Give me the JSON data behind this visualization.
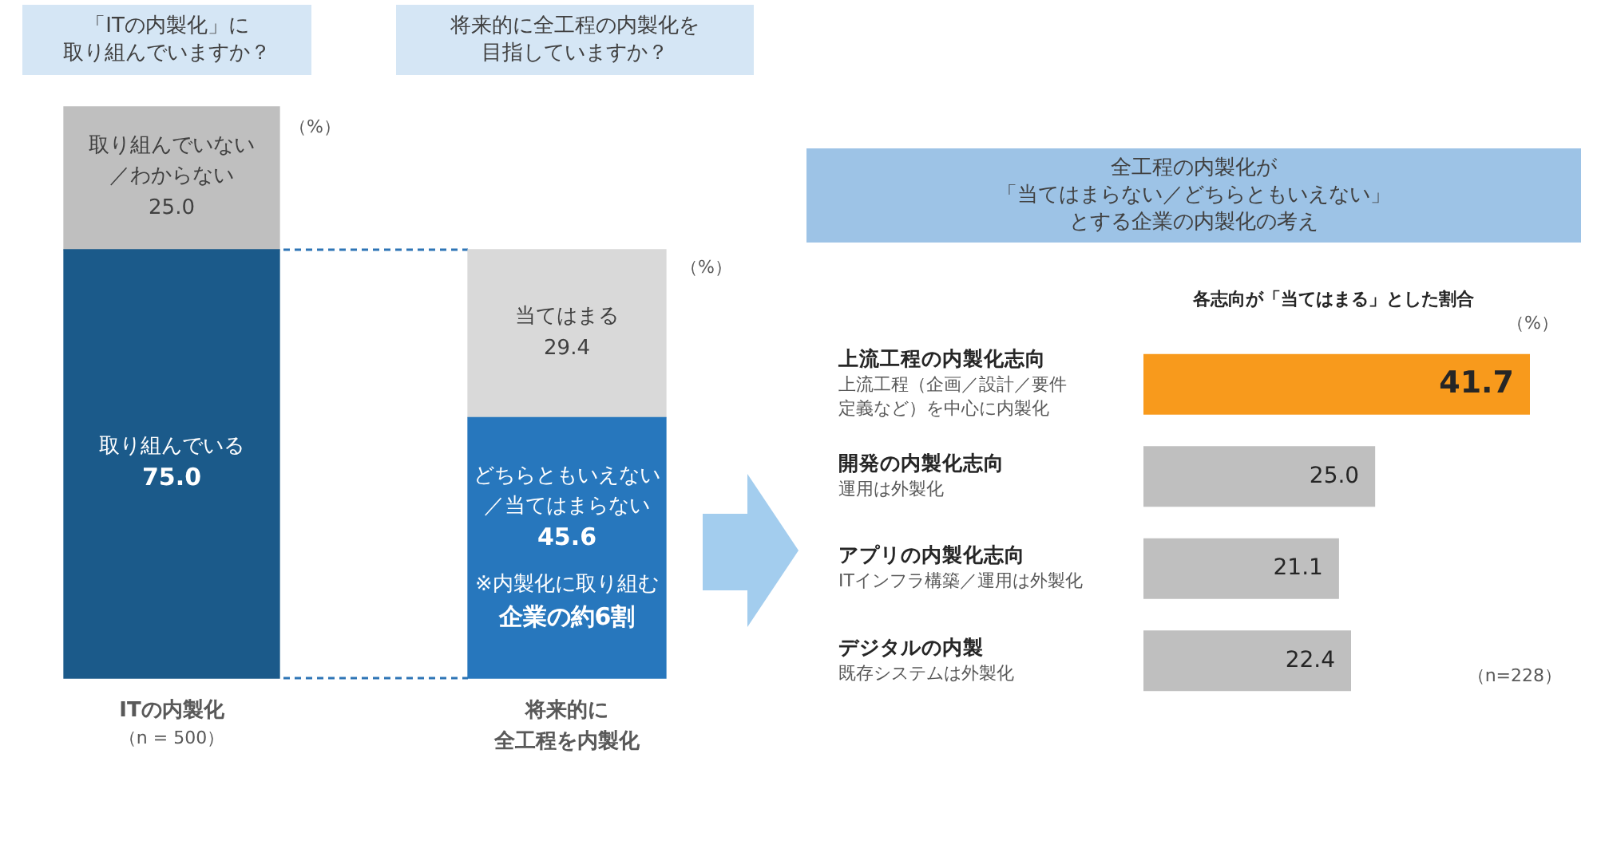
{
  "chart_data": [
    {
      "type": "bar",
      "stacked": true,
      "categories": [
        "ITの内製化",
        "将来的に全工程を内製化"
      ],
      "series": [
        {
          "name": "取り組んでいる",
          "color": "#1b5a8a",
          "values": [
            75.0,
            null
          ],
          "value_labels": [
            "75.0",
            null
          ]
        },
        {
          "name": "取り組んでいない／わからない",
          "color": "#bfbfbf",
          "values": [
            25.0,
            null
          ],
          "value_labels": [
            "25.0",
            null
          ]
        },
        {
          "name": "どちらともいえない／当てはまらない",
          "color": "#2777bd",
          "values": [
            null,
            45.6
          ],
          "value_labels": [
            null,
            "45.6"
          ]
        },
        {
          "name": "当てはまる",
          "color": "#d9d9d9",
          "values": [
            null,
            29.4
          ],
          "value_labels": [
            null,
            "29.4"
          ]
        }
      ],
      "ref_lines": [
        {
          "axis": "y",
          "value": 75.0,
          "color": "#2e75b6",
          "line_style": "dashed"
        },
        {
          "axis": "y",
          "value": 0,
          "color": "#2e75b6",
          "line_style": "dashed"
        }
      ],
      "tick_labels": "x",
      "annotations": [
        "「ITの内製化」に取り組んでいますか？",
        "将来的に全工程の内製化を目指していますか？",
        "（%）",
        "（n = 500）",
        "（%）",
        "※内製化に取り組む企業の約6割"
      ]
    },
    {
      "type": "bar",
      "orientation": "horizontal",
      "title": "全工程の内製化が「当てはまらない／どちらともいえない」とする企業の内製化の考え",
      "subtitle": "各志向が「当てはまる」とした割合",
      "categories": [
        "上流工程の内製化志向上流工程（企画／設計／要件定義など）を中心に内製化",
        "開発の内製化志向運用は外製化",
        "アプリの内製化志向ITインフラ構築／運用は外製化",
        "デジタルの内製既存システムは外製化"
      ],
      "values": [
        41.7,
        25.0,
        21.1,
        22.4
      ],
      "colors": [
        "#f89a1c",
        "#bfbfbf",
        "#bfbfbf",
        "#bfbfbf"
      ],
      "value_labels": [
        "41.7",
        "25.0",
        "21.1",
        "22.4"
      ],
      "tick_labels": "y",
      "annotations": [
        "（%）",
        "（n=228）"
      ]
    }
  ]
}
